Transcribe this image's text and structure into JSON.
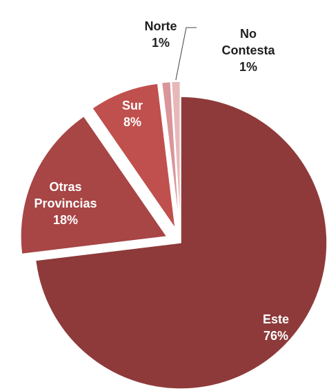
{
  "chart_data": {
    "type": "pie",
    "categories": [
      "Este",
      "Otras Provincias",
      "Sur",
      "Norte",
      "No Contesta"
    ],
    "values": [
      76,
      18,
      8,
      1,
      1
    ],
    "value_labels": [
      "76%",
      "18%",
      "8%",
      "1%",
      "1%"
    ],
    "colors": [
      "#8e3a3a",
      "#a84545",
      "#c0504d",
      "#d9959a",
      "#e6b9b8"
    ]
  }
}
